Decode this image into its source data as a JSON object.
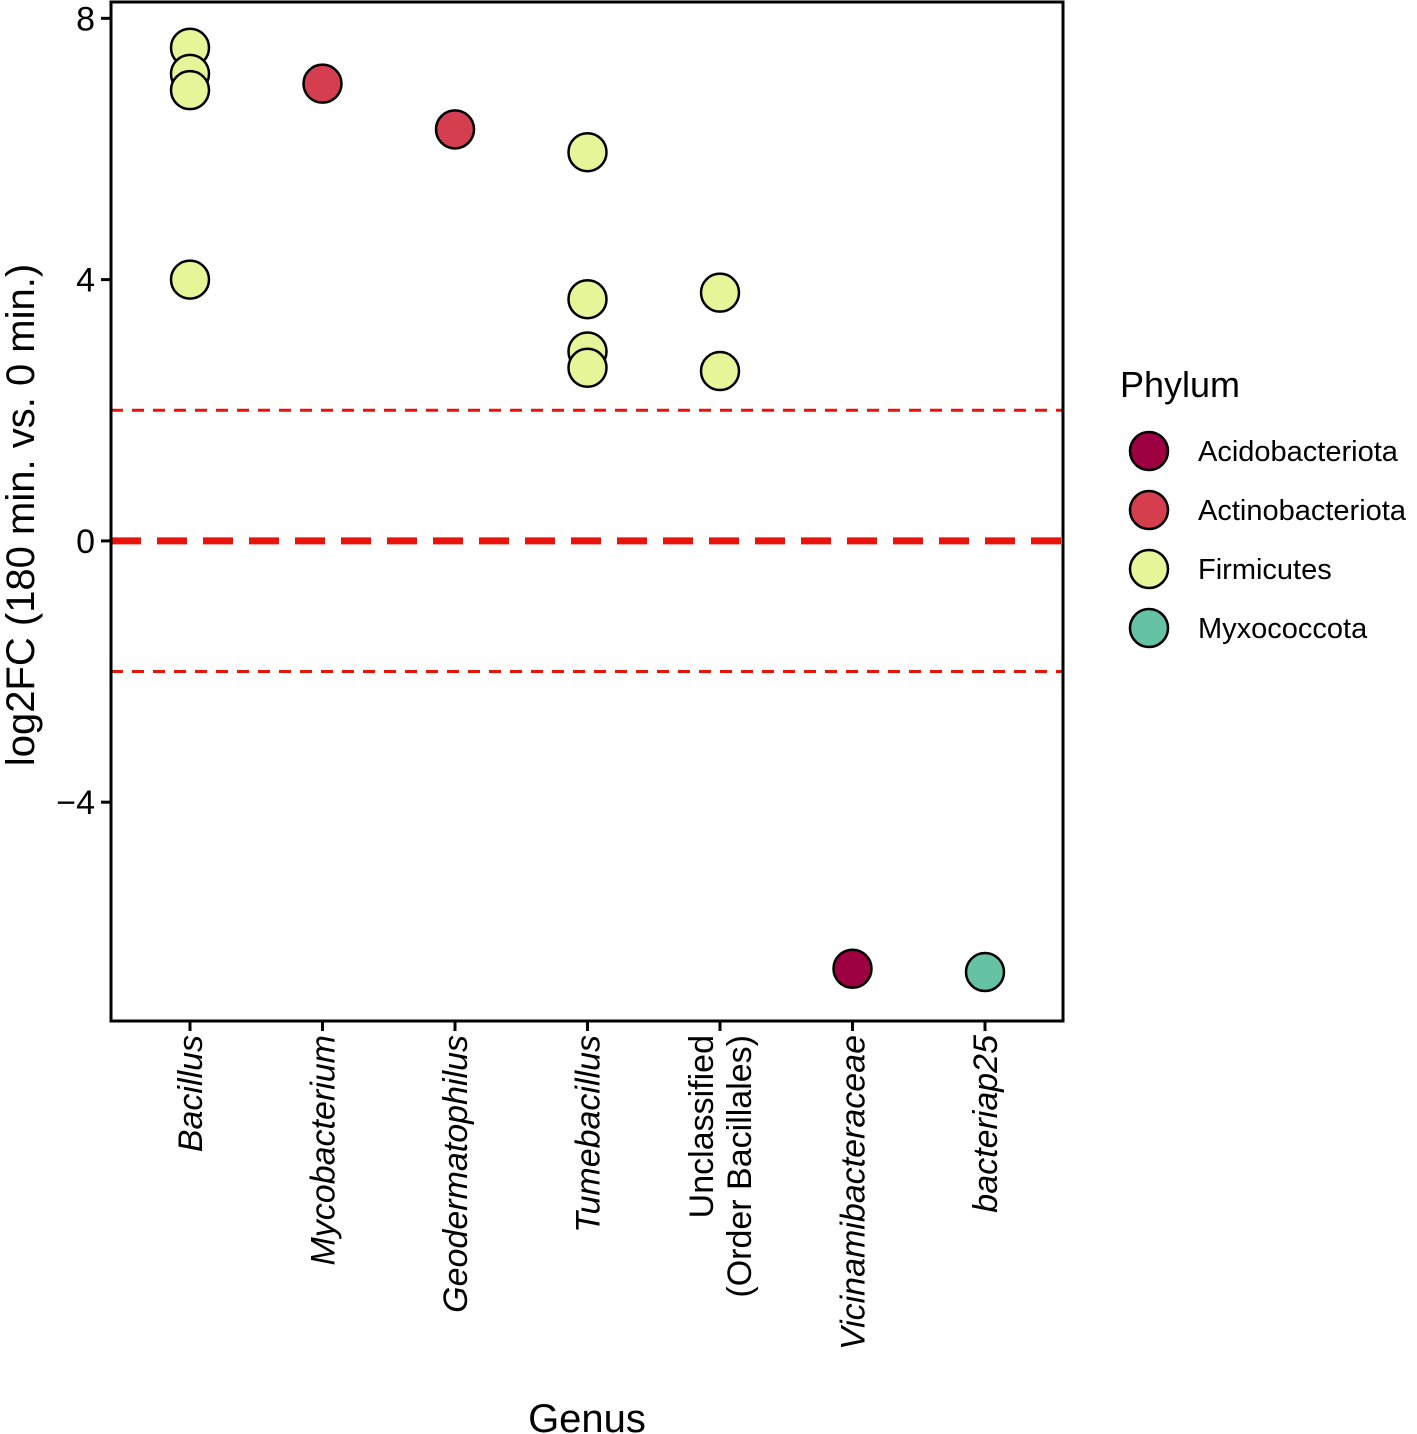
{
  "chart_data": {
    "type": "scatter",
    "title": "",
    "xlabel": "Genus",
    "ylabel": "log2FC (180 min. vs. 0 min.)",
    "ylim": [
      -7.35,
      8.25
    ],
    "yticks": [
      8,
      4,
      0,
      -4
    ],
    "ytick_labels": [
      "8",
      "4",
      "0",
      "−4"
    ],
    "categories": [
      {
        "label": "Bacillus",
        "italic": true
      },
      {
        "label": "Mycobacterium",
        "italic": true
      },
      {
        "label": "Geodermatophilus",
        "italic": true
      },
      {
        "label": "Tumebacillus",
        "italic": true
      },
      {
        "label": "Unclassified\n(Order Bacillales)",
        "italic": false
      },
      {
        "label": "Vicinamibacteraceae",
        "italic": true
      },
      {
        "label": "bacteriap25",
        "italic": true
      }
    ],
    "reference_lines": [
      {
        "y": 2,
        "style": "thin-dashed"
      },
      {
        "y": 0,
        "style": "thick-dashed"
      },
      {
        "y": -2,
        "style": "thin-dashed"
      }
    ],
    "reference_line_color": "#e8140c",
    "legend": {
      "title": "Phylum",
      "position": "right",
      "entries": [
        {
          "name": "Acidobacteriota",
          "color": "#9e0142"
        },
        {
          "name": "Actinobacteriota",
          "color": "#d53e4f"
        },
        {
          "name": "Firmicutes",
          "color": "#e6f598"
        },
        {
          "name": "Myxococcota",
          "color": "#66c2a5"
        }
      ]
    },
    "points": [
      {
        "genus": "Bacillus",
        "phylum": "Firmicutes",
        "y": 7.55
      },
      {
        "genus": "Bacillus",
        "phylum": "Firmicutes",
        "y": 7.15
      },
      {
        "genus": "Bacillus",
        "phylum": "Firmicutes",
        "y": 6.9
      },
      {
        "genus": "Bacillus",
        "phylum": "Firmicutes",
        "y": 4.0
      },
      {
        "genus": "Mycobacterium",
        "phylum": "Actinobacteriota",
        "y": 7.0
      },
      {
        "genus": "Geodermatophilus",
        "phylum": "Actinobacteriota",
        "y": 6.3
      },
      {
        "genus": "Tumebacillus",
        "phylum": "Firmicutes",
        "y": 5.95
      },
      {
        "genus": "Tumebacillus",
        "phylum": "Firmicutes",
        "y": 3.7
      },
      {
        "genus": "Tumebacillus",
        "phylum": "Firmicutes",
        "y": 2.9
      },
      {
        "genus": "Tumebacillus",
        "phylum": "Firmicutes",
        "y": 2.65
      },
      {
        "genus": "Unclassified\n(Order Bacillales)",
        "phylum": "Firmicutes",
        "y": 3.8
      },
      {
        "genus": "Unclassified\n(Order Bacillales)",
        "phylum": "Firmicutes",
        "y": 2.6
      },
      {
        "genus": "Vicinamibacteraceae",
        "phylum": "Acidobacteriota",
        "y": -6.55
      },
      {
        "genus": "bacteriap25",
        "phylum": "Myxococcota",
        "y": -6.6
      }
    ]
  }
}
